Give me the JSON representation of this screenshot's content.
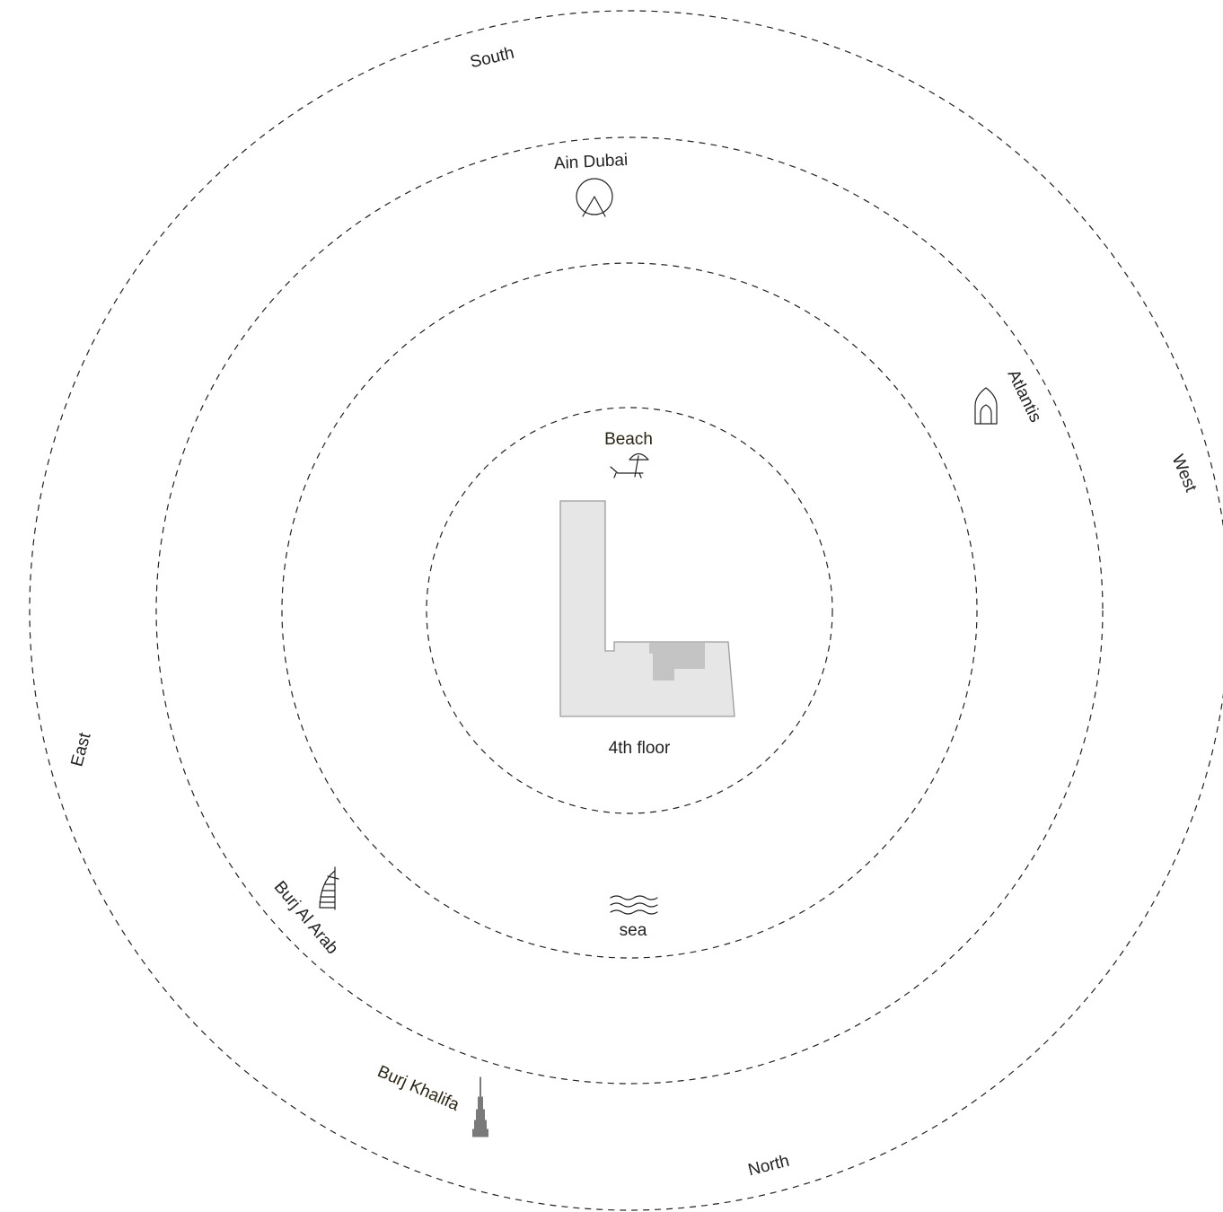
{
  "directions": {
    "south": "South",
    "west": "West",
    "north": "North",
    "east": "East"
  },
  "landmarks": {
    "ain_dubai": "Ain Dubai",
    "atlantis": "Atlantis",
    "beach": "Beach",
    "sea": "sea",
    "burj_al_arab": "Burj Al Arab",
    "burj_khalifa": "Burj Khalifa"
  },
  "floor_label": "4th floor",
  "icons": [
    "ferris-wheel-icon",
    "atlantis-arch-icon",
    "beach-umbrella-icon",
    "waves-icon",
    "burj-al-arab-icon",
    "burj-khalifa-icon"
  ],
  "colors": {
    "building_fill": "#e6e6e6",
    "unit_fill": "#c4c4c4",
    "ring_stroke": "#222222"
  }
}
